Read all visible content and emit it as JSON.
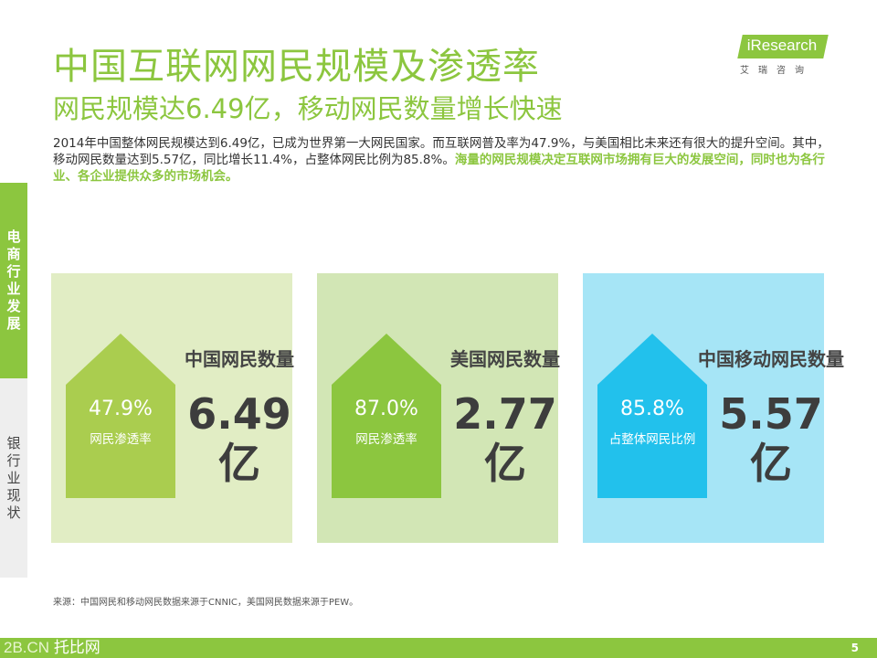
{
  "header": {
    "title": "中国互联网网民规模及渗透率",
    "subtitle": "网民规模达6.49亿，移动网民数量增长快速"
  },
  "logo": {
    "brand": "iResearch",
    "sub": "艾瑞咨询"
  },
  "summary": {
    "text": "2014年中国整体网民规模达到6.49亿，已成为世界第一大网民国家。而互联网普及率为47.9%，与美国相比未来还有很大的提升空间。其中，移动网民数量达到5.57亿，同比增长11.4%，占整体网民比例为85.8%。",
    "highlight": "海量的网民规模决定互联网市场拥有巨大的发展空间，同时也为各行业、各企业提供众多的市场机会。"
  },
  "side_nav": {
    "active_label": "电商行业发展",
    "inactive_label": "银行业现状"
  },
  "cards": [
    {
      "title": "中国网民数量",
      "percent": "47.9%",
      "percent_label": "网民渗透率",
      "value": "6.49",
      "unit": "亿",
      "bg_color": "#e1edc4",
      "house_color": "#aacd4f"
    },
    {
      "title": "美国网民数量",
      "percent": "87.0%",
      "percent_label": "网民渗透率",
      "value": "2.77",
      "unit": "亿",
      "bg_color": "#d2e6b5",
      "house_color": "#8cc63f"
    },
    {
      "title": "中国移动网民数量",
      "percent": "85.8%",
      "percent_label": "占整体网民比例",
      "value": "5.57",
      "unit": "亿",
      "bg_color": "#a6e5f6",
      "house_color": "#22c1ec"
    }
  ],
  "source": "来源：中国网民和移动网民数据来源于CNNIC，美国网民数据来源于PEW。",
  "footer": {
    "watermark_domain": "2B.CN",
    "watermark_name": "托比网",
    "page_number": "5"
  },
  "colors": {
    "accent": "#8cc63f",
    "text_dark": "#333333"
  }
}
